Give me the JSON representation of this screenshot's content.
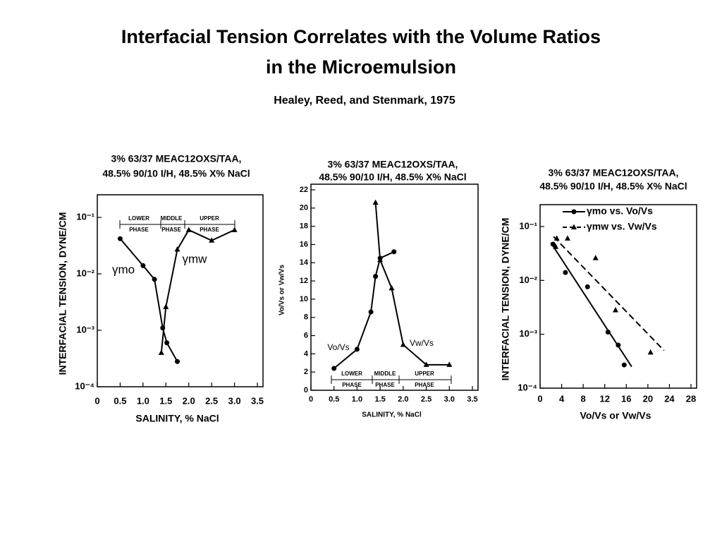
{
  "title": [
    "Interfacial Tension Correlates with the Volume Ratios",
    "in the Microemulsion"
  ],
  "subtitle": "Healey, Reed, and  Stenmark, 1975",
  "chart_data": [
    {
      "type": "line",
      "title": [
        "3% 63/37 MEAC12OXS/TAA,",
        "48.5% 90/10 I/H, 48.5% X% NaCl"
      ],
      "y_label": "INTERFACIAL TENSION, DYNE/CM",
      "x_label": "SALINITY, % NaCl",
      "log_y": true,
      "xlim": [
        0,
        3.5
      ],
      "ylim": [
        0.0001,
        0.2
      ],
      "xticks": [
        0,
        0.5,
        {
          "value": 1,
          "label": "1.0"
        },
        1.5,
        {
          "value": 2,
          "label": "2.0"
        },
        2.5,
        {
          "value": 3,
          "label": "3.0"
        },
        3.5
      ],
      "yticks": [
        {
          "value": 0.0001,
          "label": "10⁻⁴"
        },
        {
          "value": 0.001,
          "label": "10⁻³"
        },
        {
          "value": 0.01,
          "label": "10⁻²"
        },
        {
          "value": 0.1,
          "label": "10⁻¹"
        }
      ],
      "phases": [
        [
          "LOWER",
          "PHASE"
        ],
        [
          "MIDDLE",
          "PHASE"
        ],
        [
          "UPPER",
          "PHASE"
        ]
      ],
      "series": [
        {
          "name": "γmo",
          "color": "#000000",
          "marker": "circle",
          "x": [
            0.5,
            1.0,
            1.25,
            1.43,
            1.52,
            1.75
          ],
          "values": [
            0.042,
            0.014,
            0.008,
            0.0011,
            0.0006,
            0.00028
          ]
        },
        {
          "name": "γmw",
          "color": "#000000",
          "marker": "triangle",
          "x": [
            1.4,
            1.5,
            1.75,
            2.0,
            2.5,
            3.0
          ],
          "values": [
            0.0004,
            0.0026,
            0.027,
            0.06,
            0.039,
            0.06
          ]
        }
      ]
    },
    {
      "type": "line",
      "title": [
        "3% 63/37 MEAC12OXS/TAA,",
        "48.5%  90/10  I/H, 48.5% X% NaCl"
      ],
      "y_label": "Vo/Vs or Vw/Vs",
      "x_label": "SALINITY, % NaCl",
      "xlim": [
        0,
        3.5
      ],
      "ylim": [
        0,
        22
      ],
      "xticks": [
        0,
        0.5,
        {
          "value": 1,
          "label": "1.0"
        },
        1.5,
        {
          "value": 2,
          "label": "2.0"
        },
        2.5,
        {
          "value": 3,
          "label": "3.0"
        },
        3.5
      ],
      "yticks": [
        0,
        2,
        4,
        6,
        8,
        10,
        12,
        14,
        16,
        18,
        20,
        22
      ],
      "phases": [
        [
          "LOWER",
          "PHASE"
        ],
        [
          "MIDDLE",
          "PHASE"
        ],
        [
          "UPPER",
          "PHASE"
        ]
      ],
      "series": [
        {
          "name": "Vo/Vs",
          "color": "#000000",
          "marker": "circle",
          "x": [
            0.5,
            1.0,
            1.3,
            1.4,
            1.5,
            1.8
          ],
          "values": [
            2.4,
            4.5,
            8.6,
            12.5,
            14.5,
            15.2
          ]
        },
        {
          "name": "Vw/Vs",
          "color": "#000000",
          "marker": "triangle",
          "x": [
            1.4,
            1.5,
            1.75,
            2.0,
            2.5,
            3.0
          ],
          "values": [
            20.6,
            14.3,
            11.2,
            5,
            2.8,
            2.8
          ]
        }
      ]
    },
    {
      "type": "scatter",
      "title": [
        "3% 63/37 MEAC12OXS/TAA,",
        "48.5% 90/10 I/H, 48.5% X% NaCl"
      ],
      "y_label": "INTERFACIAL TENSION, DYNE/CM",
      "x_label": "Vo/Vs or Vw/Vs",
      "log_y": true,
      "xlim": [
        0,
        28
      ],
      "ylim": [
        0.0001,
        0.2
      ],
      "xticks": [
        0,
        4,
        8,
        12,
        16,
        20,
        24,
        28
      ],
      "yticks": [
        {
          "value": 0.0001,
          "label": "10⁻⁴"
        },
        {
          "value": 0.001,
          "label": "10⁻³"
        },
        {
          "value": 0.01,
          "label": "10⁻²"
        },
        {
          "value": 0.1,
          "label": "10⁻¹"
        }
      ],
      "series": [
        {
          "name": "γmo vs. Vo/Vs",
          "color": "#000000",
          "marker": "circle",
          "dash": false,
          "x": [
            2.4,
            4.7,
            8.8,
            12.6,
            14.5,
            15.6
          ],
          "values": [
            0.047,
            0.014,
            0.0076,
            0.0011,
            0.00063,
            0.00027
          ],
          "fit": {
            "x": [
              2,
              17
            ],
            "values": [
              0.05,
              0.00025
            ]
          }
        },
        {
          "name": "γmw vs. Vw/Vs",
          "color": "#000000",
          "marker": "triangle",
          "dash": true,
          "x": [
            2.9,
            3.1,
            5.1,
            10.3,
            14,
            20.5
          ],
          "values": [
            0.042,
            0.06,
            0.06,
            0.026,
            0.0028,
            0.00046
          ],
          "fit": {
            "x": [
              2.5,
              23
            ],
            "values": [
              0.065,
              0.0005
            ]
          }
        }
      ]
    }
  ]
}
